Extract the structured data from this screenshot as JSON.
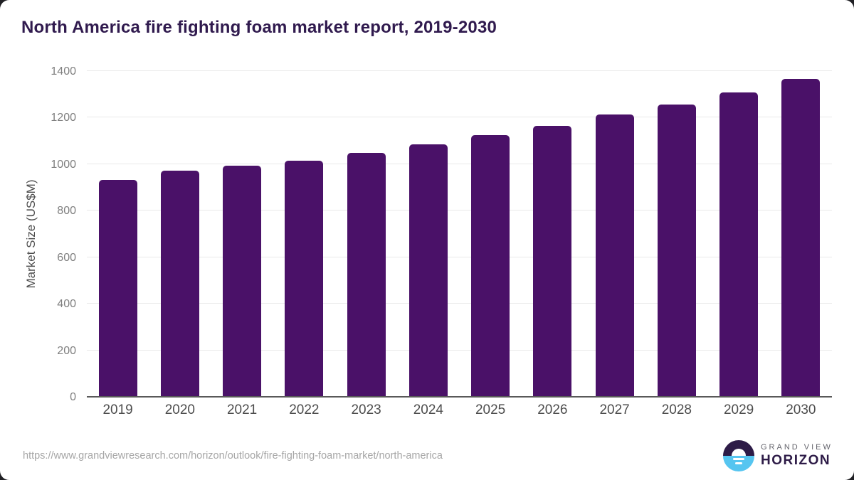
{
  "page": {
    "title": "North America fire fighting foam market report, 2019-2030"
  },
  "chart_data": {
    "type": "bar",
    "title": "North America fire fighting foam market report, 2019-2030",
    "categories": [
      "2019",
      "2020",
      "2021",
      "2022",
      "2023",
      "2024",
      "2025",
      "2026",
      "2027",
      "2028",
      "2029",
      "2030"
    ],
    "values": [
      932,
      972,
      993,
      1015,
      1048,
      1086,
      1125,
      1166,
      1213,
      1257,
      1308,
      1367
    ],
    "xlabel": "",
    "ylabel": "Market Size (US$M)",
    "ylim": [
      0,
      1400
    ],
    "yticks": [
      0,
      200,
      400,
      600,
      800,
      1000,
      1200,
      1400
    ],
    "grid": "horizontal-only",
    "legend": "none"
  },
  "footer": {
    "source_url": "https://www.grandviewresearch.com/horizon/outlook/fire-fighting-foam-market/north-america",
    "logo": {
      "top_text": "GRAND VIEW",
      "bottom_text": "HORIZON"
    }
  },
  "colors": {
    "bar": "#4a1168",
    "title": "#301a4e",
    "grid": "#e9e9e9",
    "axis_line": "#595959",
    "tick_label": "#7f7f7f",
    "x_label": "#4d4d4d",
    "url": "#a6a6a6",
    "logo_dark": "#2d1b47",
    "logo_blue": "#56c5f0"
  }
}
